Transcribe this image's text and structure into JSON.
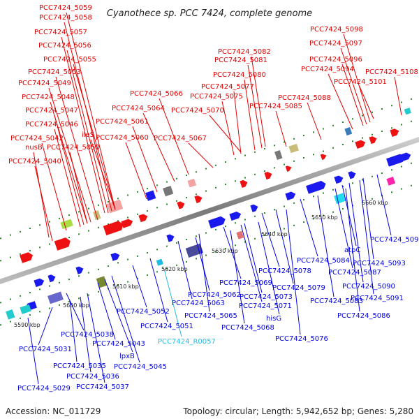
{
  "title": "Cyanothece sp. PCC 7424, complete genome",
  "footer": {
    "accession": "Accession: NC_011729",
    "summary": "Topology: circular; Length: 5,942,652 bp; Genes: 5,280"
  },
  "colors": {
    "upper_label": "#e00000",
    "lower_label": "#0000e0",
    "rna_label": "#22bbe0",
    "backbone": "#888888",
    "tick_green": "#2a8a2a"
  },
  "ticks": [
    "5590 kbp",
    "5600 kbp",
    "5610 kbp",
    "5620 kbp",
    "5630 kbp",
    "5640 kbp",
    "5650 kbp",
    "5660 kbp"
  ],
  "upper_labels": [
    "PCC7424_5059",
    "PCC7424_5058",
    "PCC7424_5057",
    "PCC7424_5056",
    "PCC7424_5055",
    "PCC7424_5053",
    "PCC7424_5049",
    "PCC7424_5048",
    "PCC7424_5047",
    "PCC7424_5046",
    "PCC7424_5042",
    "nusB",
    "PCC7424_5050",
    "ileS",
    "PCC7424_5040",
    "PCC7424_5066",
    "PCC7424_5064",
    "PCC7424_5061",
    "PCC7424_5060",
    "PCC7424_5070",
    "PCC7424_5067",
    "PCC7424_5082",
    "PCC7424_5081",
    "PCC7424_5080",
    "PCC7424_5077",
    "PCC7424_5075",
    "PCC7424_5085",
    "PCC7424_5088",
    "PCC7424_5098",
    "PCC7424_5097",
    "PCC7424_5096",
    "PCC7424_5094",
    "PCC7424_5108",
    "PCC7424_5101"
  ],
  "lower_labels": [
    "PCC7424_5031",
    "PCC7424_5038",
    "PCC7424_5043",
    "PCC7424_5035",
    "PCC7424_5036",
    "PCC7424_5037",
    "PCC7424_5029",
    "lpxB",
    "PCC7424_5045",
    "PCC7424_5052",
    "PCC7424_5051",
    "PCC7424_5062",
    "PCC7424_5063",
    "PCC7424_5065",
    "PCC7424_5069",
    "PCC7424_5073",
    "PCC7424_5071",
    "PCC7424_5068",
    "hisG",
    "PCC7424_5078",
    "PCC7424_5079",
    "PCC7424_5083",
    "PCC7424_5084",
    "PCC7424_5076",
    "PCC7424_5087",
    "atpC",
    "PCC7424_5095",
    "PCC7424_5093",
    "PCC7424_5090",
    "PCC7424_5091",
    "PCC7424_5086"
  ],
  "rna_labels": [
    "PCC7424_R0057"
  ]
}
